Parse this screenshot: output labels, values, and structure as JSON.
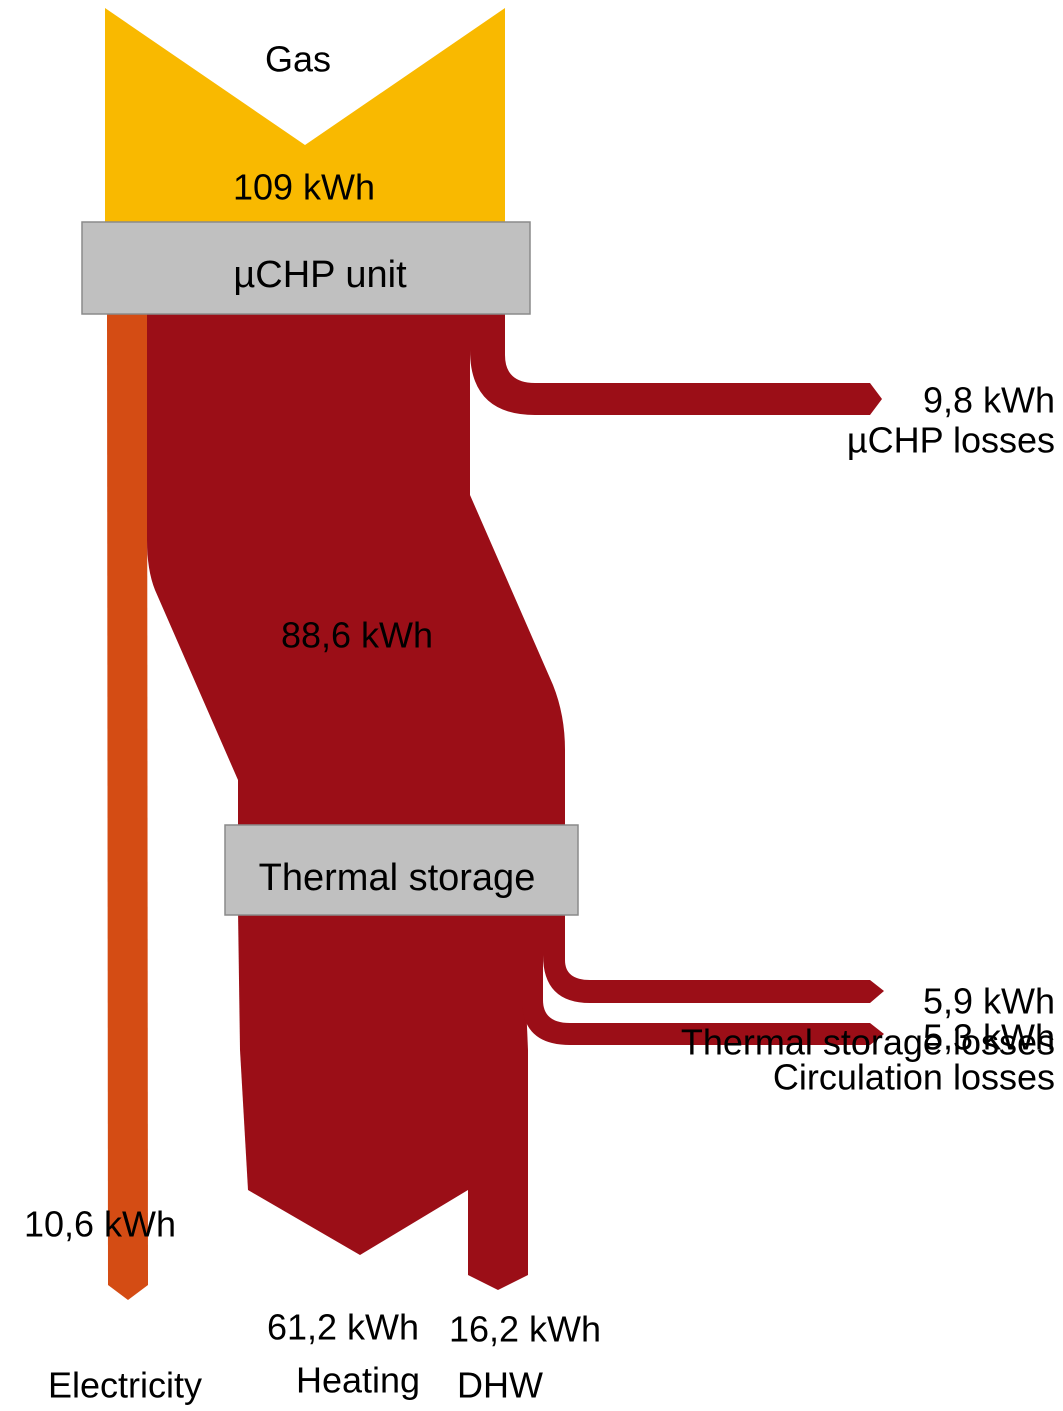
{
  "nodes": [
    {
      "label": "µCHP unit"
    },
    {
      "label": "Thermal storage"
    }
  ],
  "flows": [
    {
      "name": "Gas",
      "label": "109 kWh"
    },
    {
      "name": "µCHP losses",
      "label": "9,8 kWh"
    },
    {
      "name": "Electricity",
      "label": "10,6 kWh"
    },
    {
      "label": "88,6 kWh"
    },
    {
      "name": "Thermal storage losses",
      "label": "5,9 kWh"
    },
    {
      "name": "Circulation losses",
      "label": "5,3 kWh"
    },
    {
      "name": "Heating",
      "label": "61,2 kWh"
    },
    {
      "name": "DHW",
      "label": "16,2 kWh"
    }
  ]
}
